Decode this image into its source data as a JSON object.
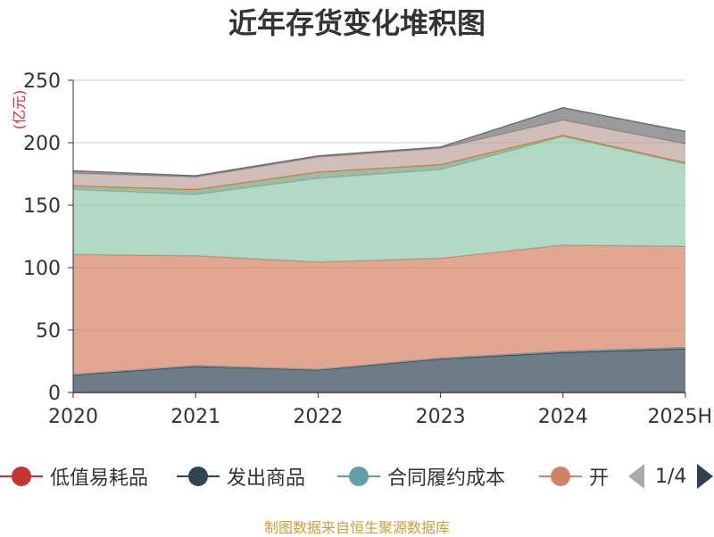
{
  "title": "近年存货变化堆积图",
  "unit_label": "(亿元)",
  "source_text": "制图数据来自恒生聚源数据库",
  "legend": {
    "items": [
      {
        "label": "低值易耗品",
        "color": "#c23531"
      },
      {
        "label": "发出商品",
        "color": "#2f4554"
      },
      {
        "label": "合同履约成本",
        "color": "#61a0a8"
      },
      {
        "label": "开",
        "color": "#d48265"
      }
    ],
    "page_text": "1/4"
  },
  "chart_data": {
    "type": "area",
    "stacked": true,
    "title": "近年存货变化堆积图",
    "ylabel": "(亿元)",
    "categories": [
      "2020",
      "2021",
      "2022",
      "2023",
      "2024",
      "2025H"
    ],
    "ylim": [
      0,
      250
    ],
    "yticks": [
      0,
      50,
      100,
      150,
      200,
      250
    ],
    "grid": true,
    "legend_position": "bottom",
    "series": [
      {
        "name": "低值易耗品",
        "color": "#c23531",
        "values": [
          0,
          0,
          0,
          0,
          0,
          0
        ]
      },
      {
        "name": "发出商品",
        "color": "#2f4554",
        "values": [
          14,
          21,
          18,
          27,
          32,
          35
        ]
      },
      {
        "name": "合同履约成本",
        "color": "#61a0a8",
        "values": [
          0.5,
          0.5,
          0.5,
          0.5,
          1,
          1
        ]
      },
      {
        "name": "开",
        "color": "#d48265",
        "values": [
          96,
          88,
          86,
          80,
          85,
          81
        ]
      },
      {
        "name": "",
        "color": "#91c7ae",
        "values": [
          52,
          49,
          67,
          71,
          87,
          66
        ]
      },
      {
        "name": "",
        "color": "#749f83",
        "values": [
          3,
          4,
          5,
          4,
          1,
          1
        ]
      },
      {
        "name": "",
        "color": "#ca8622",
        "values": [
          0,
          0,
          0,
          0,
          0,
          0
        ]
      },
      {
        "name": "",
        "color": "#bda29a",
        "values": [
          10,
          10,
          12,
          13,
          12,
          15
        ]
      },
      {
        "name": "",
        "color": "#6e7074",
        "values": [
          2,
          1,
          1,
          1,
          10,
          10
        ]
      }
    ]
  }
}
